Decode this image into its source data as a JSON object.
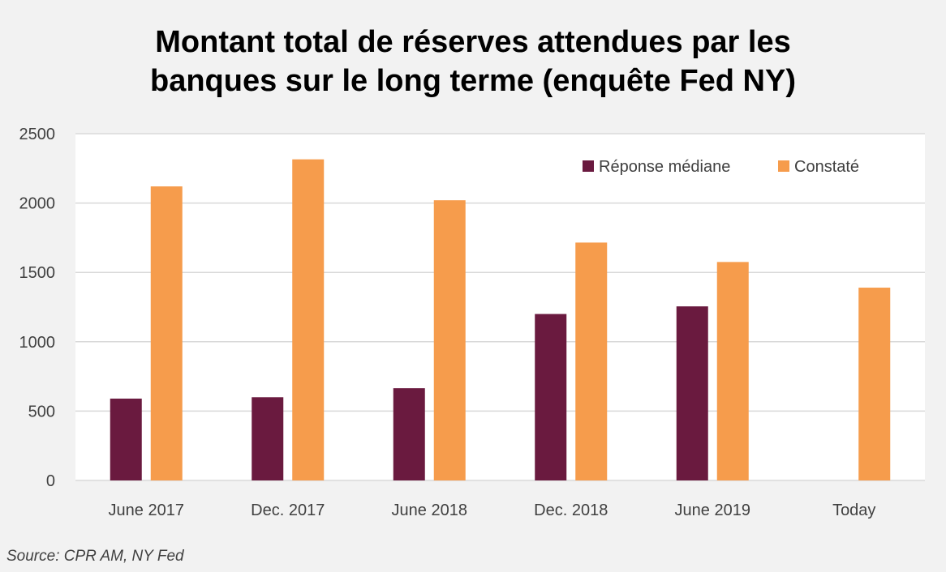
{
  "title_lines": [
    "Montant total de réserves attendues par les",
    "banques sur le long terme (enquête Fed NY)"
  ],
  "source": "Source: CPR AM, NY Fed",
  "colors": {
    "background": "#f2f2f2",
    "plot_background": "#ffffff",
    "gridline": "#d9d9d9",
    "text": "#404040"
  },
  "chart_data": {
    "type": "bar",
    "title": "Montant total de réserves attendues par les banques sur le long terme (enquête Fed NY)",
    "categories": [
      "June 2017",
      "Dec. 2017",
      "June 2018",
      "Dec. 2018",
      "June 2019",
      "Today"
    ],
    "series": [
      {
        "name": "Réponse médiane",
        "color": "#6a1a3f",
        "values": [
          590,
          600,
          665,
          1200,
          1255,
          null
        ]
      },
      {
        "name": "Constaté",
        "color": "#f69c4c",
        "values": [
          2120,
          2315,
          2020,
          1715,
          1575,
          1390
        ]
      }
    ],
    "ylim": [
      0,
      2500
    ],
    "yticks": [
      0,
      500,
      1000,
      1500,
      2000,
      2500
    ],
    "grid": true,
    "legend_position": "top-right",
    "xlabel": "",
    "ylabel": ""
  }
}
